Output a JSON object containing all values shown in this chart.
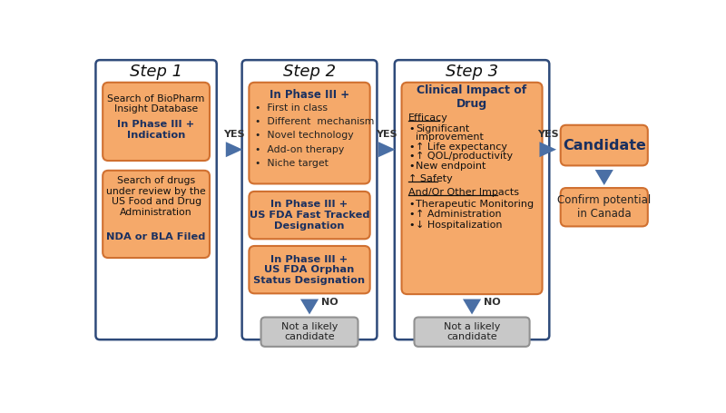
{
  "bg_color": "#ffffff",
  "panel_border_color": "#2E4A7A",
  "box_fill_orange": "#F5A96A",
  "box_fill_gray": "#C8C8C8",
  "box_border_orange": "#D07030",
  "box_border_gray": "#909090",
  "arrow_color": "#4A6FA5",
  "text_color_dark": "#1A3060",
  "text_color_black": "#222222",
  "step1_title": "Step 1",
  "step2_title": "Step 2",
  "step3_title": "Step 3",
  "step2_box1_bullets": [
    "First in class",
    "Different  mechanism",
    "Novel technology",
    "Add-on therapy",
    "Niche target"
  ],
  "candidate_box": "Candidate",
  "confirm_box": "Confirm potential\nin Canada"
}
